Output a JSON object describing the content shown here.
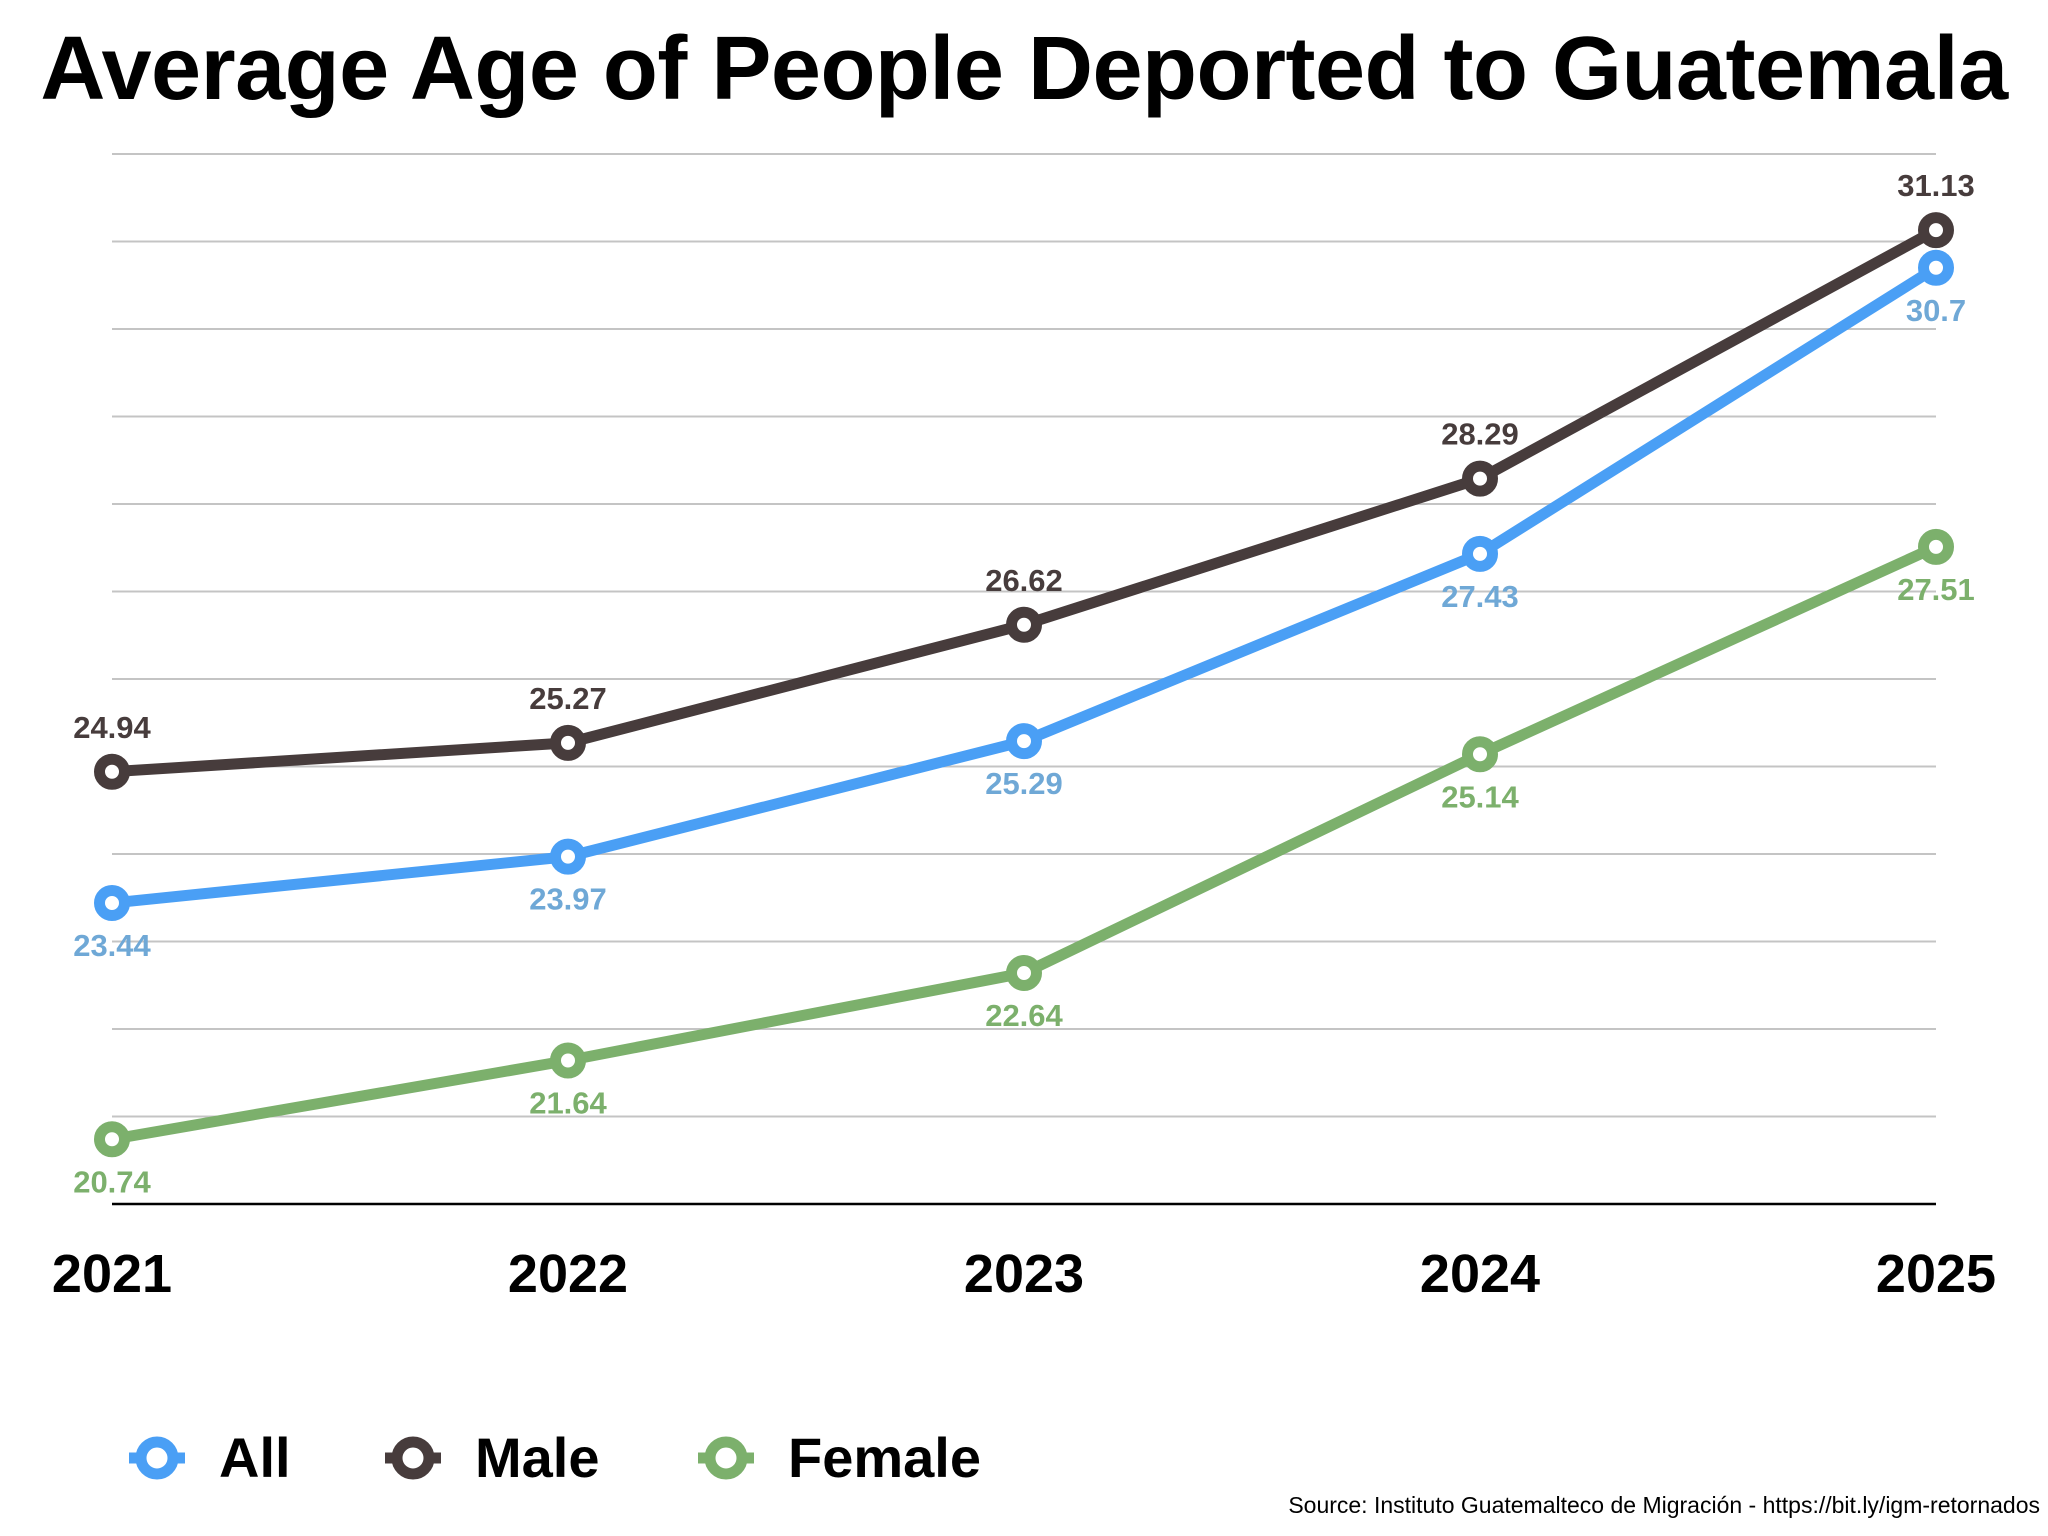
{
  "chart_data": {
    "type": "line",
    "title": "Average Age of People Deported to Guatemala",
    "xlabel": "",
    "ylabel": "",
    "x": [
      "2021",
      "2022",
      "2023",
      "2024",
      "2025"
    ],
    "ylim": [
      20,
      32
    ],
    "y_grid_step": 1,
    "grid": true,
    "y_tick_labels_shown": false,
    "legend_position": "bottom-left",
    "series": [
      {
        "name": "All",
        "color": "#4a9ff5",
        "label_color": "#6fa8d6",
        "label_position": "below",
        "values": [
          23.44,
          23.97,
          25.29,
          27.43,
          30.7
        ],
        "labels": [
          "23.44",
          "23.97",
          "25.29",
          "27.43",
          "30.7"
        ]
      },
      {
        "name": "Male",
        "color": "#473c3c",
        "label_color": "#473c3c",
        "label_position": "above",
        "values": [
          24.94,
          25.27,
          26.62,
          28.29,
          31.13
        ],
        "labels": [
          "24.94",
          "25.27",
          "26.62",
          "28.29",
          "31.13"
        ]
      },
      {
        "name": "Female",
        "color": "#7cb06c",
        "label_color": "#7cb06c",
        "label_position": "below",
        "values": [
          20.74,
          21.64,
          22.64,
          25.14,
          27.51
        ],
        "labels": [
          "20.74",
          "21.64",
          "22.64",
          "25.14",
          "27.51"
        ]
      }
    ],
    "source": "Source: Instituto Guatemalteco de Migración - https://bit.ly/igm-retornados"
  },
  "legend": {
    "items": [
      {
        "label": "All",
        "color": "#4a9ff5",
        "icon": "ring-marker-icon"
      },
      {
        "label": "Male",
        "color": "#473c3c",
        "icon": "ring-marker-icon"
      },
      {
        "label": "Female",
        "color": "#7cb06c",
        "icon": "ring-marker-icon"
      }
    ]
  }
}
